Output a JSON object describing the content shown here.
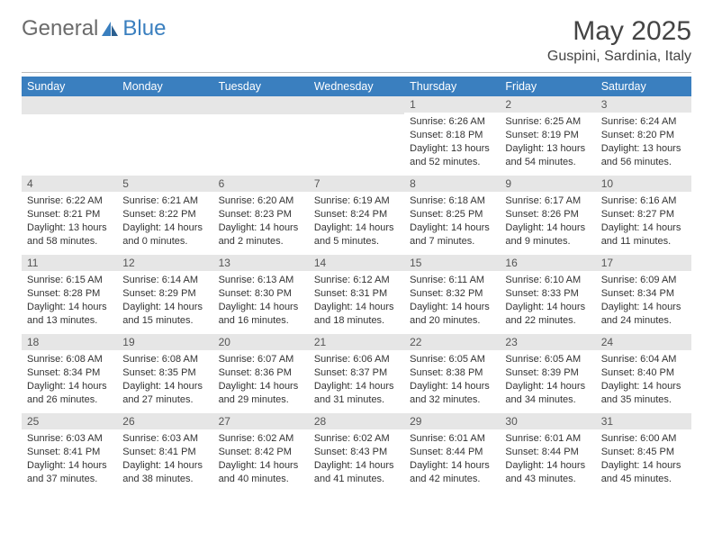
{
  "logo": {
    "text_general": "General",
    "text_blue": "Blue"
  },
  "header": {
    "month_title": "May 2025",
    "location": "Guspini, Sardinia, Italy"
  },
  "colors": {
    "header_bg": "#3a7fbf",
    "header_fg": "#ffffff",
    "daynum_bg": "#e6e6e6",
    "body_text": "#333333"
  },
  "weekdays": [
    "Sunday",
    "Monday",
    "Tuesday",
    "Wednesday",
    "Thursday",
    "Friday",
    "Saturday"
  ],
  "weeks": [
    [
      null,
      null,
      null,
      null,
      {
        "n": "1",
        "sr": "6:26 AM",
        "ss": "8:18 PM",
        "dl": "13 hours and 52 minutes."
      },
      {
        "n": "2",
        "sr": "6:25 AM",
        "ss": "8:19 PM",
        "dl": "13 hours and 54 minutes."
      },
      {
        "n": "3",
        "sr": "6:24 AM",
        "ss": "8:20 PM",
        "dl": "13 hours and 56 minutes."
      }
    ],
    [
      {
        "n": "4",
        "sr": "6:22 AM",
        "ss": "8:21 PM",
        "dl": "13 hours and 58 minutes."
      },
      {
        "n": "5",
        "sr": "6:21 AM",
        "ss": "8:22 PM",
        "dl": "14 hours and 0 minutes."
      },
      {
        "n": "6",
        "sr": "6:20 AM",
        "ss": "8:23 PM",
        "dl": "14 hours and 2 minutes."
      },
      {
        "n": "7",
        "sr": "6:19 AM",
        "ss": "8:24 PM",
        "dl": "14 hours and 5 minutes."
      },
      {
        "n": "8",
        "sr": "6:18 AM",
        "ss": "8:25 PM",
        "dl": "14 hours and 7 minutes."
      },
      {
        "n": "9",
        "sr": "6:17 AM",
        "ss": "8:26 PM",
        "dl": "14 hours and 9 minutes."
      },
      {
        "n": "10",
        "sr": "6:16 AM",
        "ss": "8:27 PM",
        "dl": "14 hours and 11 minutes."
      }
    ],
    [
      {
        "n": "11",
        "sr": "6:15 AM",
        "ss": "8:28 PM",
        "dl": "14 hours and 13 minutes."
      },
      {
        "n": "12",
        "sr": "6:14 AM",
        "ss": "8:29 PM",
        "dl": "14 hours and 15 minutes."
      },
      {
        "n": "13",
        "sr": "6:13 AM",
        "ss": "8:30 PM",
        "dl": "14 hours and 16 minutes."
      },
      {
        "n": "14",
        "sr": "6:12 AM",
        "ss": "8:31 PM",
        "dl": "14 hours and 18 minutes."
      },
      {
        "n": "15",
        "sr": "6:11 AM",
        "ss": "8:32 PM",
        "dl": "14 hours and 20 minutes."
      },
      {
        "n": "16",
        "sr": "6:10 AM",
        "ss": "8:33 PM",
        "dl": "14 hours and 22 minutes."
      },
      {
        "n": "17",
        "sr": "6:09 AM",
        "ss": "8:34 PM",
        "dl": "14 hours and 24 minutes."
      }
    ],
    [
      {
        "n": "18",
        "sr": "6:08 AM",
        "ss": "8:34 PM",
        "dl": "14 hours and 26 minutes."
      },
      {
        "n": "19",
        "sr": "6:08 AM",
        "ss": "8:35 PM",
        "dl": "14 hours and 27 minutes."
      },
      {
        "n": "20",
        "sr": "6:07 AM",
        "ss": "8:36 PM",
        "dl": "14 hours and 29 minutes."
      },
      {
        "n": "21",
        "sr": "6:06 AM",
        "ss": "8:37 PM",
        "dl": "14 hours and 31 minutes."
      },
      {
        "n": "22",
        "sr": "6:05 AM",
        "ss": "8:38 PM",
        "dl": "14 hours and 32 minutes."
      },
      {
        "n": "23",
        "sr": "6:05 AM",
        "ss": "8:39 PM",
        "dl": "14 hours and 34 minutes."
      },
      {
        "n": "24",
        "sr": "6:04 AM",
        "ss": "8:40 PM",
        "dl": "14 hours and 35 minutes."
      }
    ],
    [
      {
        "n": "25",
        "sr": "6:03 AM",
        "ss": "8:41 PM",
        "dl": "14 hours and 37 minutes."
      },
      {
        "n": "26",
        "sr": "6:03 AM",
        "ss": "8:41 PM",
        "dl": "14 hours and 38 minutes."
      },
      {
        "n": "27",
        "sr": "6:02 AM",
        "ss": "8:42 PM",
        "dl": "14 hours and 40 minutes."
      },
      {
        "n": "28",
        "sr": "6:02 AM",
        "ss": "8:43 PM",
        "dl": "14 hours and 41 minutes."
      },
      {
        "n": "29",
        "sr": "6:01 AM",
        "ss": "8:44 PM",
        "dl": "14 hours and 42 minutes."
      },
      {
        "n": "30",
        "sr": "6:01 AM",
        "ss": "8:44 PM",
        "dl": "14 hours and 43 minutes."
      },
      {
        "n": "31",
        "sr": "6:00 AM",
        "ss": "8:45 PM",
        "dl": "14 hours and 45 minutes."
      }
    ]
  ],
  "labels": {
    "sunrise": "Sunrise:",
    "sunset": "Sunset:",
    "daylight": "Daylight:"
  }
}
